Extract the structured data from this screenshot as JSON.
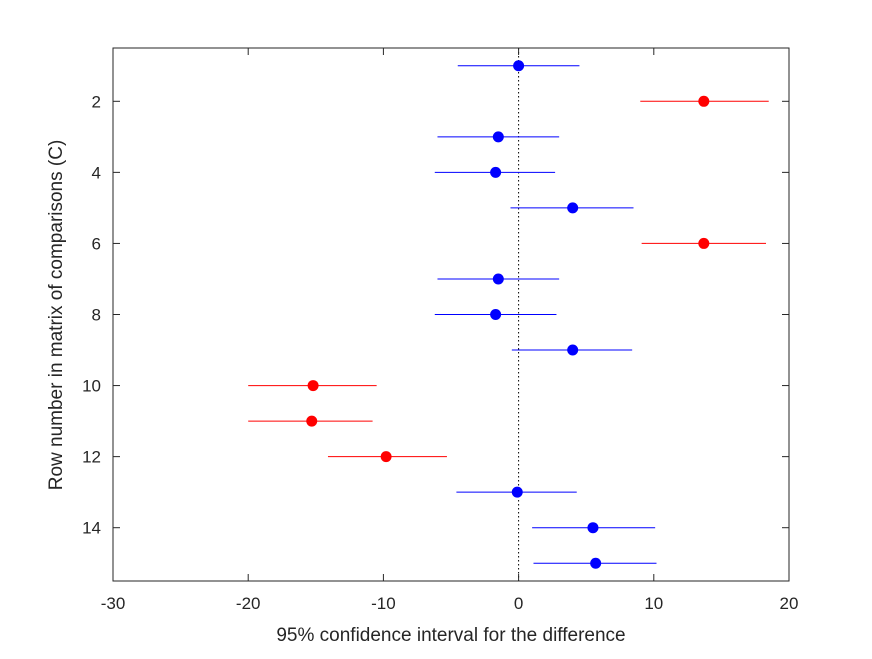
{
  "chart_data": {
    "type": "scatter",
    "xlabel": "95% confidence interval for the difference",
    "ylabel": "Row number in matrix of comparisons (C)",
    "xlim": [
      -30,
      20
    ],
    "ylim": [
      0.5,
      15.5
    ],
    "y_reversed": true,
    "x_ticks": [
      "-30",
      "-20",
      "-10",
      "0",
      "10",
      "20"
    ],
    "y_ticks": [
      "2",
      "4",
      "6",
      "8",
      "10",
      "12",
      "14"
    ],
    "zero_reference_line": true,
    "grid": false,
    "colors": {
      "significant": "#ff0000",
      "not_significant": "#0000ff",
      "axis": "#262626"
    },
    "rows": [
      {
        "row": 1,
        "estimate": 0.0,
        "lower": -4.5,
        "upper": 4.5,
        "significant": false
      },
      {
        "row": 2,
        "estimate": 13.7,
        "lower": 9.0,
        "upper": 18.5,
        "significant": true
      },
      {
        "row": 3,
        "estimate": -1.5,
        "lower": -6.0,
        "upper": 3.0,
        "significant": false
      },
      {
        "row": 4,
        "estimate": -1.7,
        "lower": -6.2,
        "upper": 2.7,
        "significant": false
      },
      {
        "row": 5,
        "estimate": 4.0,
        "lower": -0.6,
        "upper": 8.5,
        "significant": false
      },
      {
        "row": 6,
        "estimate": 13.7,
        "lower": 9.1,
        "upper": 18.3,
        "significant": true
      },
      {
        "row": 7,
        "estimate": -1.5,
        "lower": -6.0,
        "upper": 3.0,
        "significant": false
      },
      {
        "row": 8,
        "estimate": -1.7,
        "lower": -6.2,
        "upper": 2.8,
        "significant": false
      },
      {
        "row": 9,
        "estimate": 4.0,
        "lower": -0.5,
        "upper": 8.4,
        "significant": false
      },
      {
        "row": 10,
        "estimate": -15.2,
        "lower": -20.0,
        "upper": -10.5,
        "significant": true
      },
      {
        "row": 11,
        "estimate": -15.3,
        "lower": -20.0,
        "upper": -10.8,
        "significant": true
      },
      {
        "row": 12,
        "estimate": -9.8,
        "lower": -14.1,
        "upper": -5.3,
        "significant": true
      },
      {
        "row": 13,
        "estimate": -0.1,
        "lower": -4.6,
        "upper": 4.3,
        "significant": false
      },
      {
        "row": 14,
        "estimate": 5.5,
        "lower": 1.0,
        "upper": 10.1,
        "significant": false
      },
      {
        "row": 15,
        "estimate": 5.7,
        "lower": 1.1,
        "upper": 10.2,
        "significant": false
      }
    ]
  }
}
